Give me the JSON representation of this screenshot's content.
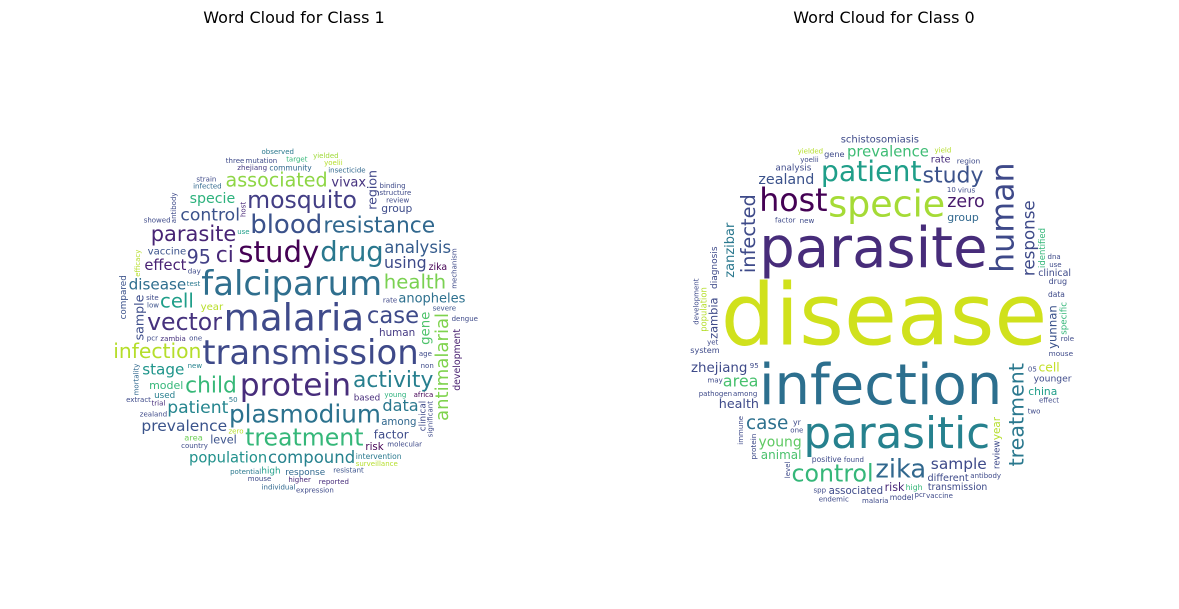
{
  "chart_data": [
    {
      "type": "wordcloud",
      "title": "Word Cloud for Class 1",
      "words": [
        [
          "malaria",
          5,
          "#3f4a8a",
          0
        ],
        [
          "falciparum",
          6,
          "#2f6f8e",
          0
        ],
        [
          "plasmodium",
          11,
          "#2c728e",
          0
        ],
        [
          "parasite",
          15,
          "#482475",
          0
        ],
        [
          "study",
          8,
          "#440154",
          0
        ],
        [
          "infection",
          16,
          "#b5de2b",
          0
        ],
        [
          "blood",
          10,
          "#3b528b",
          0
        ],
        [
          "drug",
          9,
          "#2a788e",
          0
        ],
        [
          "mosquito",
          12,
          "#433e85",
          0
        ],
        [
          "vector",
          12,
          "#46327e",
          0
        ],
        [
          "health",
          17,
          "#7ad151",
          0
        ],
        [
          "treatment",
          12,
          "#35b779",
          0
        ],
        [
          "transmission",
          6,
          "#3e4989",
          0
        ],
        [
          "activity",
          14,
          "#277f8e",
          0
        ],
        [
          "protein",
          7,
          "#472d7b",
          0
        ],
        [
          "cell",
          17,
          "#1f9e89",
          0
        ],
        [
          "child",
          14,
          "#37b878",
          0
        ],
        [
          "case",
          13,
          "#3e4a89",
          0
        ],
        [
          "resistance",
          14,
          "#31688e",
          0
        ],
        [
          "antimalarial",
          20,
          "#7fd34e",
          1
        ],
        [
          "ci",
          14,
          "#482878",
          0
        ],
        [
          "associated",
          18,
          "#8ed645",
          0
        ],
        [
          "95",
          18,
          "#424086",
          0
        ],
        [
          "control",
          22,
          "#3b528b",
          0
        ],
        [
          "data",
          25,
          "#2a788e",
          0
        ],
        [
          "compound",
          24,
          "#26828e",
          0
        ],
        [
          "patient",
          22,
          "#25858e",
          0
        ],
        [
          "disease",
          28,
          "#2e6e8e",
          0
        ],
        [
          "prevalence",
          27,
          "#3a538b",
          0
        ],
        [
          "analysis",
          24,
          "#365c8d",
          0
        ],
        [
          "using",
          26,
          "#3e4a89",
          0
        ],
        [
          "stage",
          28,
          "#1f958b",
          0
        ],
        [
          "gene",
          36,
          "#4ec36b",
          1
        ],
        [
          "sample",
          40,
          "#3d4d8a",
          1
        ],
        [
          "region",
          40,
          "#404688",
          1
        ],
        [
          "population",
          30,
          "#21918c",
          0
        ],
        [
          "specie",
          32,
          "#2db27d",
          0
        ],
        [
          "effect",
          30,
          "#482173",
          0
        ],
        [
          "vivax",
          38,
          "#46337f",
          0
        ],
        [
          "anopheles",
          38,
          "#2d708e",
          0
        ],
        [
          "factor",
          45,
          "#3e4c8a",
          0
        ],
        [
          "level",
          50,
          "#3b528b",
          0
        ],
        [
          "model",
          52,
          "#35b779",
          0
        ],
        [
          "group",
          55,
          "#3e4c8a",
          0
        ],
        [
          "human",
          58,
          "#443983",
          0
        ],
        [
          "among",
          60,
          "#31688e",
          0
        ],
        [
          "risk",
          60,
          "#440154",
          0
        ],
        [
          "year",
          62,
          "#b8de29",
          0
        ],
        [
          "vaccine",
          62,
          "#3b528b",
          0
        ],
        [
          "zika",
          70,
          "#440154",
          0
        ],
        [
          "based",
          80,
          "#472d7b",
          0
        ],
        [
          "response",
          80,
          "#31688e",
          0
        ],
        [
          "high",
          80,
          "#1f9e89",
          0
        ],
        [
          "used",
          80,
          "#277f8e",
          0
        ],
        [
          "clinical",
          80,
          "#3e4a89",
          1
        ],
        [
          "compared",
          80,
          "#3b528b",
          1
        ],
        [
          "development",
          70,
          "#481f70",
          1
        ],
        [
          "area",
          90,
          "#6ece58",
          0
        ],
        [
          "community",
          110,
          "#31688e",
          0
        ],
        [
          "intervention",
          110,
          "#2a788e",
          0
        ],
        [
          "use",
          130,
          "#1f9e89",
          0
        ],
        [
          "host",
          130,
          "#482878",
          1
        ],
        [
          "young",
          120,
          "#2db27d",
          0
        ],
        [
          "rate",
          120,
          "#3f4788",
          0
        ],
        [
          "day",
          120,
          "#3e4a89",
          0
        ],
        [
          "zhejiang",
          120,
          "#443983",
          0
        ],
        [
          "zambia",
          140,
          "#46327e",
          0
        ],
        [
          "infected",
          140,
          "#31688e",
          0
        ],
        [
          "insecticide",
          140,
          "#31688e",
          0
        ],
        [
          "new",
          160,
          "#26828e",
          0
        ],
        [
          "review",
          160,
          "#3e4a89",
          0
        ],
        [
          "resistant",
          160,
          "#3b528b",
          0
        ],
        [
          "zero",
          160,
          "#b5de2b",
          0
        ],
        [
          "target",
          160,
          "#35b779",
          0
        ],
        [
          "country",
          160,
          "#3e4c8a",
          0
        ],
        [
          "low",
          160,
          "#3b528b",
          0
        ],
        [
          "yoelii",
          200,
          "#b5de2b",
          0
        ],
        [
          "severe",
          160,
          "#3b528b",
          0
        ],
        [
          "potential",
          140,
          "#2a788e",
          0
        ],
        [
          "higher",
          160,
          "#482878",
          0
        ],
        [
          "africa",
          180,
          "#440154",
          0
        ],
        [
          "mouse",
          200,
          "#3e4a89",
          0
        ],
        [
          "test",
          140,
          "#2a788e",
          0
        ],
        [
          "structure",
          180,
          "#3e4a89",
          0
        ],
        [
          "antibody",
          180,
          "#3e4a89",
          1
        ],
        [
          "trial",
          180,
          "#472d7b",
          0
        ],
        [
          "mutation",
          180,
          "#3e4a89",
          0
        ],
        [
          "yielded",
          240,
          "#a0da39",
          0
        ],
        [
          "reported",
          200,
          "#472d7b",
          0
        ],
        [
          "50",
          180,
          "#2a788e",
          0
        ],
        [
          "mechanism",
          200,
          "#3e4a89",
          1
        ],
        [
          "mortality",
          220,
          "#31688e",
          1
        ],
        [
          "efficacy",
          220,
          "#b5de2b",
          1
        ],
        [
          "binding",
          200,
          "#3e4a89",
          0
        ],
        [
          "individual",
          200,
          "#31688e",
          0
        ],
        [
          "molecular",
          200,
          "#3e4a89",
          0
        ],
        [
          "zealand",
          220,
          "#3e4a89",
          0
        ],
        [
          "showed",
          220,
          "#3e4a89",
          0
        ],
        [
          "observed",
          240,
          "#2a788e",
          0
        ],
        [
          "expression",
          240,
          "#3e4a89",
          0
        ],
        [
          "significant",
          240,
          "#3e4a89",
          1
        ],
        [
          "age",
          240,
          "#3e4a89",
          0
        ],
        [
          "strain",
          220,
          "#3e4a89",
          0
        ],
        [
          "one",
          240,
          "#3e4a89",
          0
        ],
        [
          "three",
          240,
          "#3e4a89",
          0
        ],
        [
          "dengue",
          240,
          "#3e4a89",
          0
        ],
        [
          "surveillance",
          240,
          "#b5de2b",
          0
        ],
        [
          "extract",
          240,
          "#3e4a89",
          0
        ],
        [
          "site",
          240,
          "#3e4a89",
          0
        ],
        [
          "pcr",
          240,
          "#3e4a89",
          0
        ],
        [
          "non",
          240,
          "#3e4a89",
          0
        ]
      ]
    },
    {
      "type": "wordcloud",
      "title": "Word Cloud for Class 0",
      "words": [
        [
          "infection",
          2,
          "#2c6f8e",
          0
        ],
        [
          "disease",
          1,
          "#d0e11c",
          0
        ],
        [
          "parasite",
          2,
          "#472c7a",
          0
        ],
        [
          "parasitic",
          3,
          "#26818e",
          0
        ],
        [
          "specie",
          4,
          "#a5db36",
          0
        ],
        [
          "human",
          5,
          "#3e4989",
          1
        ],
        [
          "host",
          5,
          "#440154",
          0
        ],
        [
          "patient",
          6,
          "#1f9e89",
          0
        ],
        [
          "zika",
          7,
          "#31688e",
          0
        ],
        [
          "control",
          8,
          "#35b779",
          0
        ],
        [
          "study",
          9,
          "#3b528b",
          0
        ],
        [
          "treatment",
          10,
          "#2a788e",
          1
        ],
        [
          "infected",
          11,
          "#3e4a89",
          1
        ],
        [
          "case",
          12,
          "#2d708e",
          0
        ],
        [
          "zero",
          13,
          "#481a6c",
          0
        ],
        [
          "response",
          14,
          "#3e4a89",
          1
        ],
        [
          "area",
          15,
          "#48c16e",
          0
        ],
        [
          "sample",
          16,
          "#3e4a89",
          0
        ],
        [
          "prevalence",
          17,
          "#3dbc74",
          0
        ],
        [
          "zealand",
          18,
          "#3b528b",
          0
        ],
        [
          "young",
          19,
          "#5ec962",
          0
        ],
        [
          "zhejiang",
          20,
          "#3e4a89",
          0
        ],
        [
          "zanzibar",
          21,
          "#2a788e",
          1
        ],
        [
          "health",
          22,
          "#3e4a89",
          0
        ],
        [
          "cell",
          23,
          "#c2df23",
          0
        ],
        [
          "animal",
          24,
          "#4ac16d",
          0
        ],
        [
          "yunnan",
          25,
          "#3b528b",
          1
        ],
        [
          "zambia",
          26,
          "#3e4a89",
          1
        ],
        [
          "risk",
          27,
          "#482878",
          0
        ],
        [
          "group",
          28,
          "#31688e",
          0
        ],
        [
          "china",
          29,
          "#1f9e89",
          0
        ],
        [
          "year",
          30,
          "#b5de2b",
          1
        ],
        [
          "associated",
          31,
          "#3e4a89",
          0
        ],
        [
          "schistosomiasis",
          32,
          "#3e4a89",
          0
        ],
        [
          "rate",
          33,
          "#472d7b",
          0
        ],
        [
          "different",
          34,
          "#3e4a89",
          0
        ],
        [
          "clinical",
          35,
          "#3e4a89",
          0
        ],
        [
          "transmission",
          36,
          "#3e4a89",
          0
        ],
        [
          "younger",
          37,
          "#3e4a89",
          0
        ],
        [
          "diagnosis",
          38,
          "#3e4a89",
          1
        ],
        [
          "analysis",
          39,
          "#3e4a89",
          0
        ],
        [
          "specific",
          40,
          "#35b779",
          1
        ],
        [
          "review",
          41,
          "#3e4a89",
          1
        ],
        [
          "identified",
          42,
          "#35b779",
          1
        ],
        [
          "population",
          43,
          "#b5de2b",
          1
        ],
        [
          "gene",
          44,
          "#3e4a89",
          0
        ],
        [
          "system",
          45,
          "#3e4a89",
          0
        ],
        [
          "drug",
          46,
          "#3e4a89",
          0
        ],
        [
          "yr",
          47,
          "#3e4a89",
          0
        ],
        [
          "high",
          48,
          "#35b779",
          0
        ],
        [
          "model",
          49,
          "#3e4a89",
          0
        ],
        [
          "positive",
          50,
          "#3e4a89",
          0
        ],
        [
          "data",
          51,
          "#3e4a89",
          0
        ],
        [
          "region",
          52,
          "#3e4a89",
          0
        ],
        [
          "protein",
          53,
          "#3e4a89",
          1
        ],
        [
          "mouse",
          54,
          "#3e4a89",
          0
        ],
        [
          "virus",
          55,
          "#3e4a89",
          0
        ],
        [
          "new",
          56,
          "#3e4a89",
          0
        ],
        [
          "found",
          57,
          "#3e4a89",
          0
        ],
        [
          "two",
          58,
          "#3e4a89",
          0
        ],
        [
          "yield",
          59,
          "#b5de2b",
          0
        ],
        [
          "among",
          60,
          "#3e4a89",
          0
        ],
        [
          "yoelii",
          61,
          "#3e4a89",
          0
        ],
        [
          "level",
          62,
          "#3e4a89",
          1
        ],
        [
          "factor",
          63,
          "#3e4a89",
          0
        ],
        [
          "95",
          64,
          "#3e4a89",
          0
        ],
        [
          "may",
          65,
          "#3e4a89",
          0
        ],
        [
          "one",
          66,
          "#3e4a89",
          0
        ],
        [
          "10",
          67,
          "#3e4a89",
          0
        ],
        [
          "05",
          68,
          "#3e4a89",
          0
        ],
        [
          "effect",
          69,
          "#3e4a89",
          0
        ],
        [
          "pathogen",
          70,
          "#3e4a89",
          0
        ],
        [
          "yielded",
          71,
          "#b5de2b",
          0
        ],
        [
          "immune",
          72,
          "#3e4a89",
          1
        ],
        [
          "yet",
          73,
          "#3e4a89",
          0
        ],
        [
          "use",
          74,
          "#3e4a89",
          0
        ],
        [
          "malaria",
          75,
          "#3e4a89",
          0
        ],
        [
          "antibody",
          76,
          "#3e4a89",
          0
        ],
        [
          "pcr",
          77,
          "#3e4a89",
          0
        ],
        [
          "vaccine",
          78,
          "#3e4a89",
          0
        ],
        [
          "endemic",
          79,
          "#3e4a89",
          0
        ],
        [
          "development",
          80,
          "#3e4a89",
          1
        ],
        [
          "spp",
          81,
          "#3e4a89",
          0
        ],
        [
          "role",
          82,
          "#3e4a89",
          0
        ],
        [
          "dna",
          83,
          "#3e4a89",
          0
        ]
      ]
    }
  ]
}
